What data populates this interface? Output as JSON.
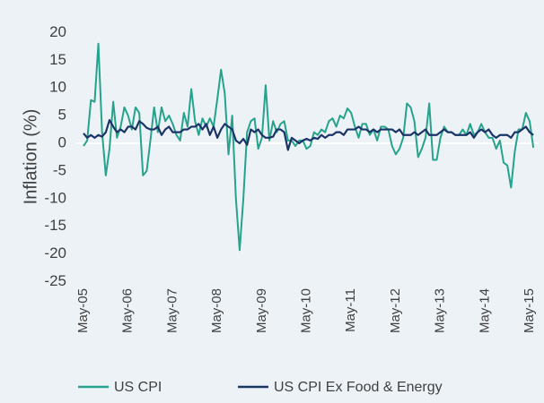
{
  "chart_data": {
    "type": "line",
    "y_label": "Inflation (%)",
    "categories": [
      "May-05",
      null,
      null,
      null,
      null,
      null,
      null,
      null,
      null,
      null,
      null,
      null,
      "May-06",
      null,
      null,
      null,
      null,
      null,
      null,
      null,
      null,
      null,
      null,
      null,
      "May-07",
      null,
      null,
      null,
      null,
      null,
      null,
      null,
      null,
      null,
      null,
      null,
      "May-08",
      null,
      null,
      null,
      null,
      null,
      null,
      null,
      null,
      null,
      null,
      null,
      "May-09",
      null,
      null,
      null,
      null,
      null,
      null,
      null,
      null,
      null,
      null,
      null,
      "May-10",
      null,
      null,
      null,
      null,
      null,
      null,
      null,
      null,
      null,
      null,
      null,
      "May-11",
      null,
      null,
      null,
      null,
      null,
      null,
      null,
      null,
      null,
      null,
      null,
      "May-12",
      null,
      null,
      null,
      null,
      null,
      null,
      null,
      null,
      null,
      null,
      null,
      "May-13",
      null,
      null,
      null,
      null,
      null,
      null,
      null,
      null,
      null,
      null,
      null,
      "May-14",
      null,
      null,
      null,
      null,
      null,
      null,
      null,
      null,
      null,
      null,
      null,
      "May-15",
      null
    ],
    "series": [
      {
        "name": "US CPI",
        "color": "#26a38c",
        "values": [
          -0.5,
          0.5,
          7.8,
          7.5,
          18,
          2,
          -5.8,
          -1,
          7.5,
          1,
          3,
          6.5,
          5,
          2.5,
          6.5,
          5.5,
          -5.8,
          -5,
          0.5,
          6.5,
          2,
          6.5,
          4,
          5,
          3.5,
          1.5,
          0.5,
          5.5,
          3,
          9.8,
          4,
          1.5,
          4.5,
          3,
          4.5,
          3,
          8,
          13.3,
          9,
          -2,
          5,
          -10,
          -19.3,
          -10,
          2,
          4,
          4.5,
          -1,
          1,
          10.5,
          0.5,
          4,
          2,
          3.5,
          4,
          0.5,
          0.5,
          -0.5,
          0.5,
          0.5,
          -1,
          -0.5,
          2,
          1.5,
          2.5,
          2,
          4,
          4.5,
          3,
          5,
          4.5,
          6.3,
          5.5,
          3,
          1,
          3.5,
          3.5,
          1.5,
          2.5,
          0.5,
          3,
          3,
          2.5,
          -0.5,
          -2,
          -1,
          1,
          7.2,
          6.5,
          4,
          -2.5,
          -1,
          1,
          7.2,
          -3,
          -3,
          1,
          3,
          2,
          2,
          1.5,
          1.5,
          2.5,
          1.5,
          3.5,
          1.5,
          2,
          3.5,
          2,
          1,
          1,
          -1,
          0.5,
          -3.5,
          -4,
          -8,
          -1.5,
          2.5,
          2.5,
          5.5,
          4,
          -0.8
        ]
      },
      {
        "name": "US CPI Ex Food & Energy",
        "color": "#1b3468",
        "values": [
          1.8,
          1,
          1.5,
          1,
          1.5,
          1.2,
          2,
          4.2,
          3,
          2,
          2.5,
          2,
          3,
          3,
          2.5,
          4,
          3.5,
          2.8,
          2.5,
          2.5,
          3,
          1.5,
          2.5,
          3,
          2,
          2,
          2,
          2.5,
          2.5,
          3,
          3,
          3.5,
          2.5,
          3.5,
          1.5,
          3,
          1,
          2.5,
          3.5,
          3,
          2.5,
          0.5,
          0,
          0.8,
          -0.3,
          2.5,
          2,
          2.5,
          1.5,
          1,
          1,
          1.2,
          2.5,
          2.5,
          2,
          -1.2,
          1,
          0.5,
          0,
          0.5,
          0.8,
          0.5,
          1,
          0.8,
          1.5,
          1,
          1.5,
          1.5,
          2,
          2,
          1.5,
          2.5,
          2.5,
          2.5,
          3,
          2.5,
          2.5,
          2,
          2.5,
          2,
          2.5,
          2.5,
          2.5,
          2.5,
          2,
          2.5,
          1.5,
          1.5,
          1.5,
          2,
          1.5,
          2,
          2.5,
          1.5,
          1.5,
          1.5,
          2,
          2.5,
          2,
          2,
          1.5,
          1.5,
          1.5,
          1.5,
          2,
          1,
          2,
          2.5,
          2,
          2.5,
          1.5,
          1,
          1.5,
          1.5,
          1.5,
          1,
          2,
          2,
          2.5,
          3,
          2,
          1.5
        ]
      }
    ],
    "ylim": [
      -25,
      20
    ],
    "yticks": [
      -25,
      -20,
      -15,
      -10,
      -5,
      0,
      5,
      10,
      15,
      20
    ],
    "grid": false,
    "legend": "bottom"
  }
}
